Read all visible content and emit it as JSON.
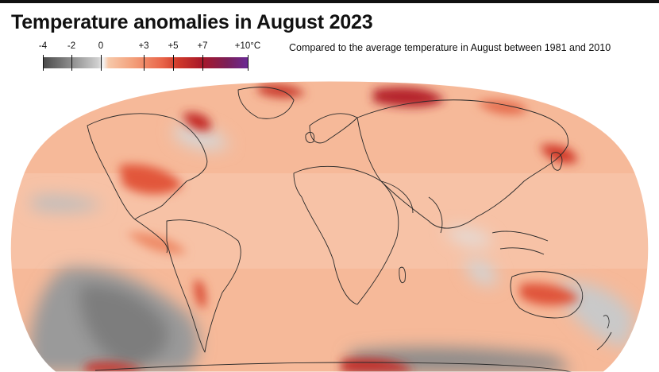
{
  "title": "Temperature anomalies in August 2023",
  "subtitle": "Compared to the average temperature in August between 1981 and 2010",
  "legend": {
    "labels": [
      "-4",
      "-2",
      "0",
      "+3",
      "+5",
      "+7",
      "+10°C"
    ],
    "values": [
      -4,
      -2,
      0,
      3,
      5,
      7,
      10
    ],
    "colors": {
      "cold_dark": "#4a4a4a",
      "cold_light": "#cfcfcf",
      "neutral": "#f3f3f3",
      "warm_light": "#f7c8a9",
      "warm_mid": "#e9664a",
      "warm_strong": "#a7182a",
      "extreme": "#6a2a94"
    }
  }
}
